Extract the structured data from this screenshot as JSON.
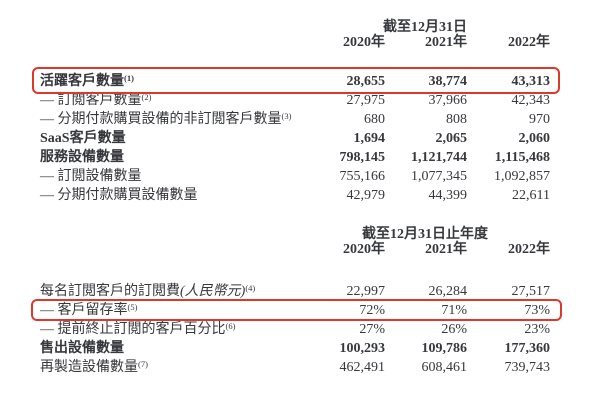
{
  "colors": {
    "background": "#ffffff",
    "text": "#37383d",
    "highlight_box": "#dc392b"
  },
  "table1": {
    "period_header": "截至12月31日",
    "columns": [
      "2020年",
      "2021年",
      "2022年"
    ],
    "rows": [
      {
        "label": "活躍客戶數量",
        "sup": "(1)",
        "values": [
          "28,655",
          "38,774",
          "43,313"
        ]
      },
      {
        "label": "— 訂閲客戶數量",
        "sup": "(2)",
        "values": [
          "27,975",
          "37,966",
          "42,343"
        ]
      },
      {
        "label": "— 分期付款購買設備的非訂閲客戶數量",
        "sup": "(3)",
        "values": [
          "680",
          "808",
          "970"
        ]
      },
      {
        "label": "SaaS客戶數量",
        "values": [
          "1,694",
          "2,065",
          "2,060"
        ]
      },
      {
        "label": "服務設備數量",
        "values": [
          "798,145",
          "1,121,744",
          "1,115,468"
        ]
      },
      {
        "label": "— 訂閲設備數量",
        "values": [
          "755,166",
          "1,077,345",
          "1,092,857"
        ]
      },
      {
        "label": "— 分期付款購買設備數量",
        "values": [
          "42,979",
          "44,399",
          "22,611"
        ]
      }
    ]
  },
  "table2": {
    "period_header": "截至12月31日止年度",
    "columns": [
      "2020年",
      "2021年",
      "2022年"
    ],
    "rows": [
      {
        "label": "每名訂閲客戶的訂閲費",
        "label_italic": "(人民幣元)",
        "sup": "(4)",
        "values": [
          "22,997",
          "26,284",
          "27,517"
        ]
      },
      {
        "label": "— 客戶留存率",
        "sup": "(5)",
        "values": [
          "72%",
          "71%",
          "73%"
        ]
      },
      {
        "label": "— 提前終止訂閲的客戶百分比",
        "sup": "(6)",
        "values": [
          "27%",
          "26%",
          "23%"
        ]
      },
      {
        "label": "售出設備數量",
        "values": [
          "100,293",
          "109,786",
          "177,360"
        ]
      },
      {
        "label": "再製造設備數量",
        "sup": "(7)",
        "values": [
          "462,491",
          "608,461",
          "739,743"
        ]
      }
    ]
  }
}
